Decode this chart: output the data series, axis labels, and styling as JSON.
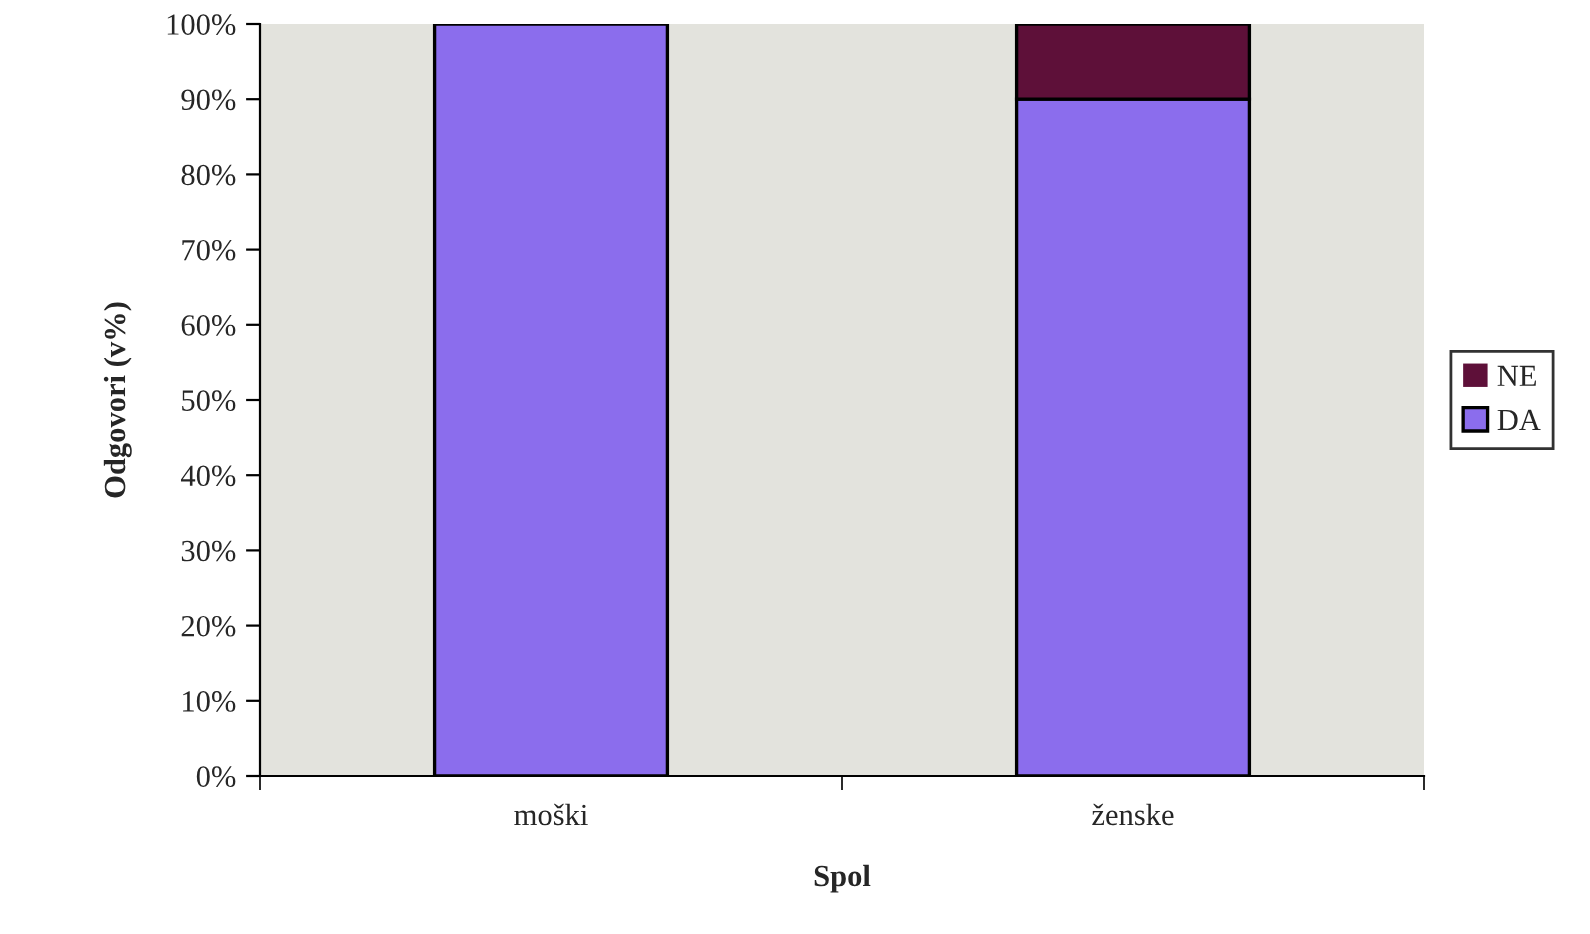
{
  "chart_data": {
    "type": "bar",
    "stacked": true,
    "xlabel": "Spol",
    "ylabel": "Odgovori (v%)",
    "categories": [
      "moški",
      "ženske"
    ],
    "series": [
      {
        "name": "DA",
        "color": "#8b6ded",
        "values": [
          100,
          90
        ]
      },
      {
        "name": "NE",
        "color": "#5e1039",
        "values": [
          0,
          10
        ]
      }
    ],
    "ylim": [
      0,
      100
    ],
    "yticks": [
      {
        "value": 0,
        "label": "0%"
      },
      {
        "value": 10,
        "label": "10%"
      },
      {
        "value": 20,
        "label": "20%"
      },
      {
        "value": 30,
        "label": "30%"
      },
      {
        "value": 40,
        "label": "40%"
      },
      {
        "value": 50,
        "label": "50%"
      },
      {
        "value": 60,
        "label": "60%"
      },
      {
        "value": 70,
        "label": "70%"
      },
      {
        "value": 80,
        "label": "80%"
      },
      {
        "value": 90,
        "label": "90%"
      },
      {
        "value": 100,
        "label": "100%"
      }
    ],
    "grid": false,
    "legend": "right"
  }
}
